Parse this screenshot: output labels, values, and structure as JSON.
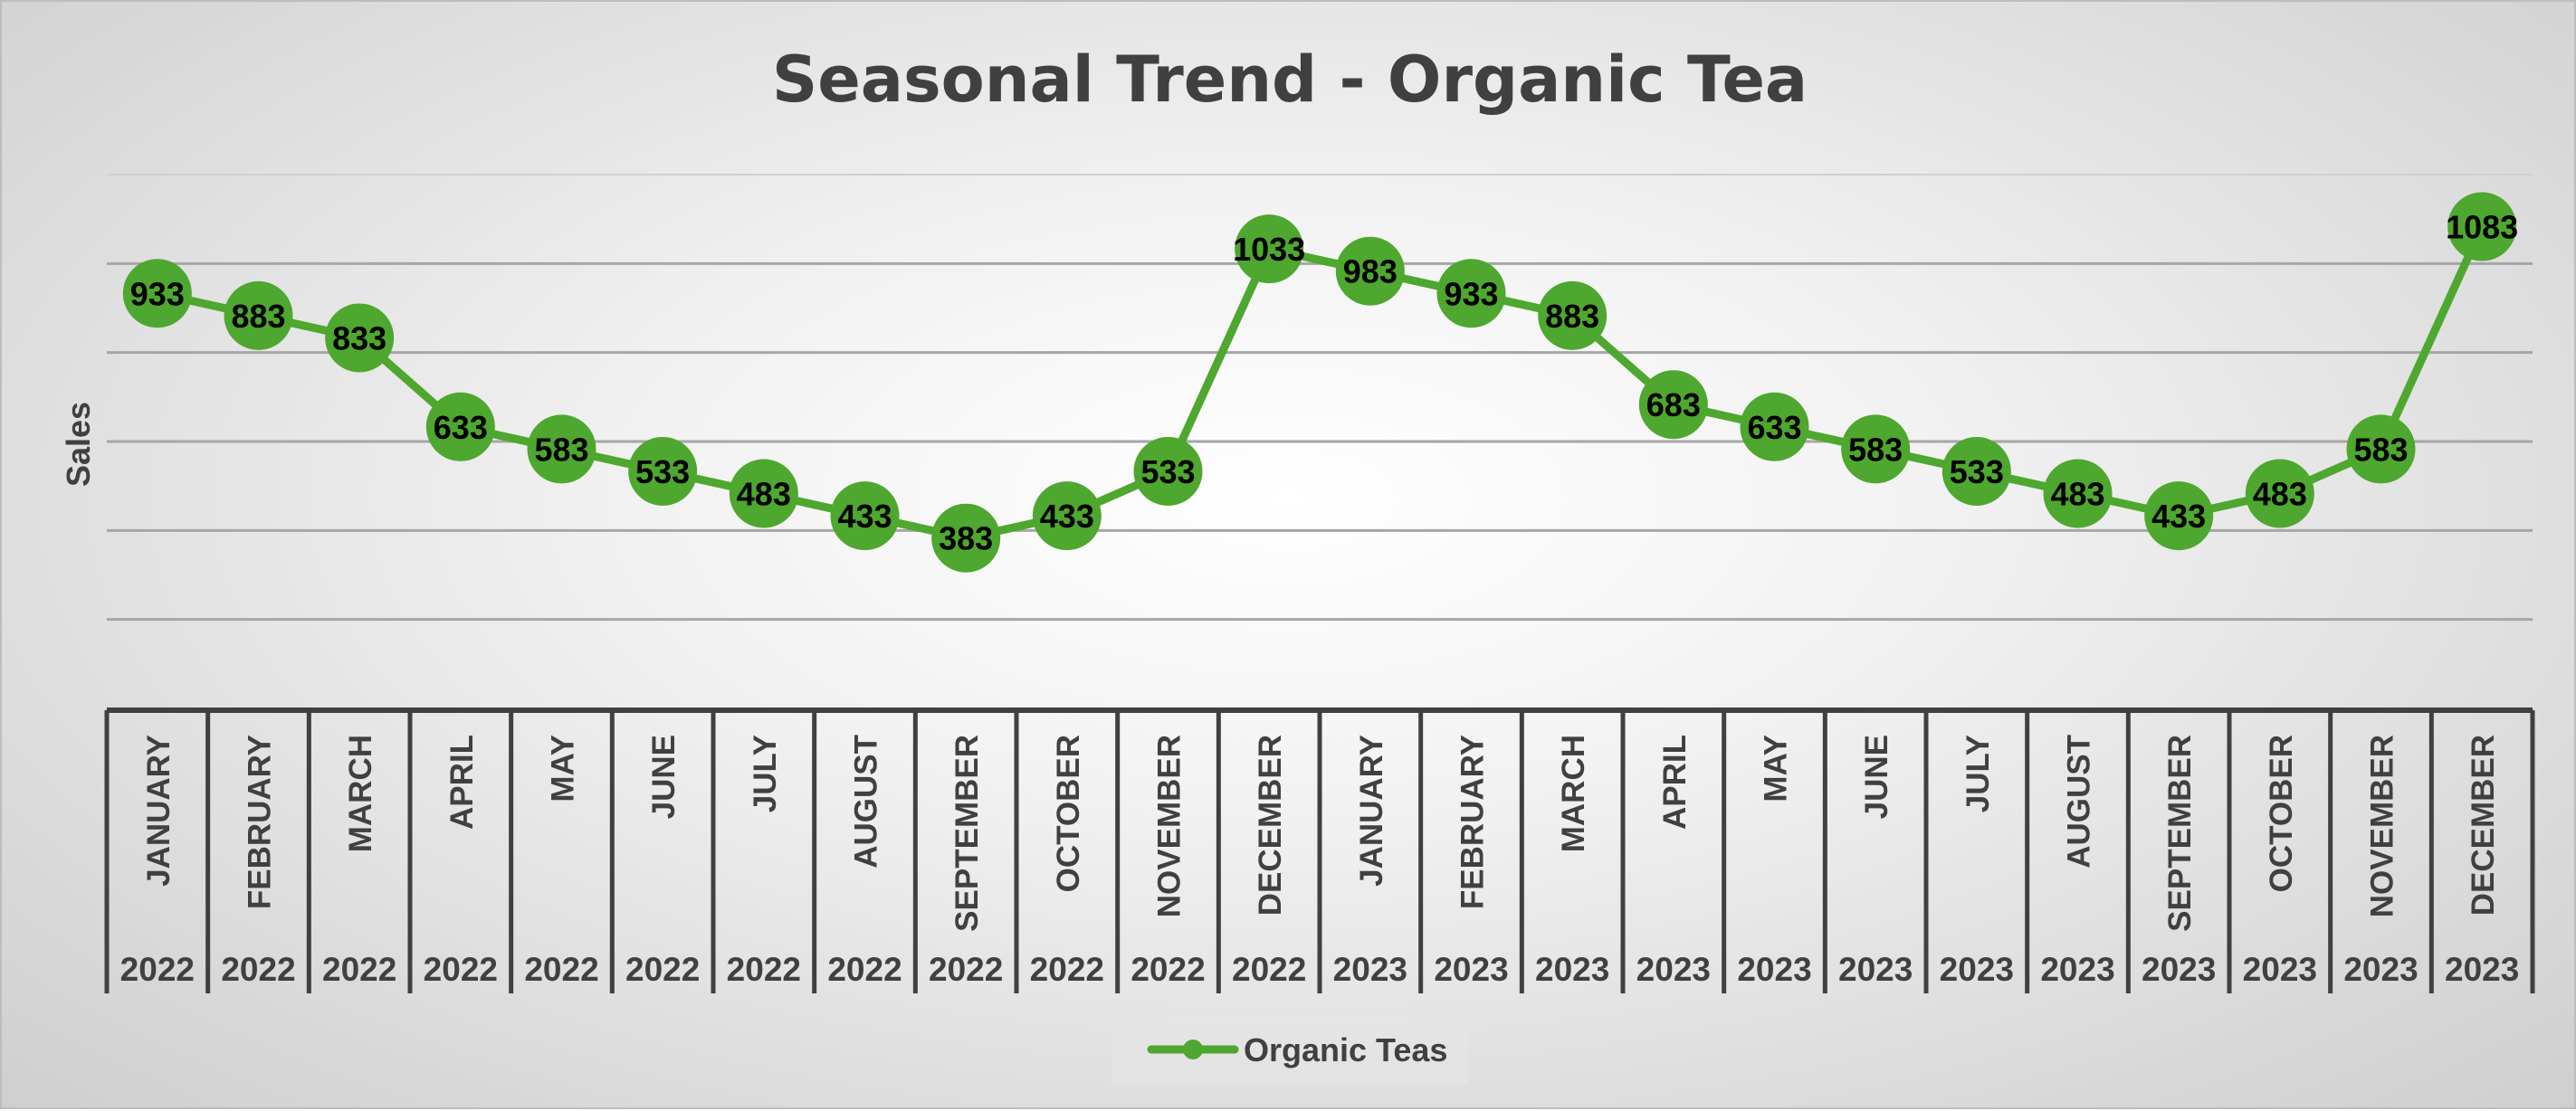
{
  "chart_data": {
    "type": "line",
    "title": "Seasonal Trend - Organic Tea",
    "ylabel": "Sales",
    "xlabel": "",
    "ylim": [
      0,
      1200
    ],
    "y_gridlines": [
      200,
      400,
      600,
      800,
      1000,
      1200
    ],
    "y_tick_labels_shown": false,
    "categories": [
      {
        "month": "JANUARY",
        "year": "2022"
      },
      {
        "month": "FEBRUARY",
        "year": "2022"
      },
      {
        "month": "MARCH",
        "year": "2022"
      },
      {
        "month": "APRIL",
        "year": "2022"
      },
      {
        "month": "MAY",
        "year": "2022"
      },
      {
        "month": "JUNE",
        "year": "2022"
      },
      {
        "month": "JULY",
        "year": "2022"
      },
      {
        "month": "AUGUST",
        "year": "2022"
      },
      {
        "month": "SEPTEMBER",
        "year": "2022"
      },
      {
        "month": "OCTOBER",
        "year": "2022"
      },
      {
        "month": "NOVEMBER",
        "year": "2022"
      },
      {
        "month": "DECEMBER",
        "year": "2022"
      },
      {
        "month": "JANUARY",
        "year": "2023"
      },
      {
        "month": "FEBRUARY",
        "year": "2023"
      },
      {
        "month": "MARCH",
        "year": "2023"
      },
      {
        "month": "APRIL",
        "year": "2023"
      },
      {
        "month": "MAY",
        "year": "2023"
      },
      {
        "month": "JUNE",
        "year": "2023"
      },
      {
        "month": "JULY",
        "year": "2023"
      },
      {
        "month": "AUGUST",
        "year": "2023"
      },
      {
        "month": "SEPTEMBER",
        "year": "2023"
      },
      {
        "month": "OCTOBER",
        "year": "2023"
      },
      {
        "month": "NOVEMBER",
        "year": "2023"
      },
      {
        "month": "DECEMBER",
        "year": "2023"
      }
    ],
    "series": [
      {
        "name": "Organic Teas",
        "color": "#4ea72e",
        "values": [
          933,
          883,
          833,
          633,
          583,
          533,
          483,
          433,
          383,
          433,
          533,
          1033,
          983,
          933,
          883,
          683,
          633,
          583,
          533,
          483,
          433,
          483,
          583,
          1083
        ]
      }
    ],
    "grid": true,
    "legend": "bottom-center"
  },
  "colors": {
    "series": "#4ea72e",
    "text": "#404040",
    "gridline": "#a6a6a6",
    "axis_box": "#404040",
    "data_label": "#000000"
  }
}
